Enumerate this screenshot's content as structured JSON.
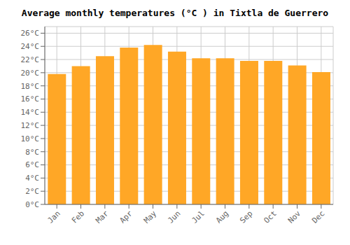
{
  "chart_data": {
    "type": "bar",
    "title": "Average monthly temperatures (°C ) in Tixtla de Guerrero",
    "categories": [
      "Jan",
      "Feb",
      "Mar",
      "Apr",
      "May",
      "Jun",
      "Jul",
      "Aug",
      "Sep",
      "Oct",
      "Nov",
      "Dec"
    ],
    "values": [
      19.8,
      21.0,
      22.5,
      23.8,
      24.2,
      23.2,
      22.2,
      22.2,
      21.8,
      21.8,
      21.1,
      20.1
    ],
    "color": "#FFA726",
    "ylim": [
      0,
      27
    ],
    "yticks": [
      {
        "value": 0,
        "label": "0°C"
      },
      {
        "value": 2,
        "label": "2°C"
      },
      {
        "value": 4,
        "label": "4°C"
      },
      {
        "value": 6,
        "label": "6°C"
      },
      {
        "value": 8,
        "label": "8°C"
      },
      {
        "value": 10,
        "label": "10°C"
      },
      {
        "value": 12,
        "label": "12°C"
      },
      {
        "value": 14,
        "label": "14°C"
      },
      {
        "value": 16,
        "label": "16°C"
      },
      {
        "value": 18,
        "label": "18°C"
      },
      {
        "value": 20,
        "label": "20°C"
      },
      {
        "value": 22,
        "label": "22°C"
      },
      {
        "value": 24,
        "label": "24°C"
      },
      {
        "value": 26,
        "label": "26°C"
      }
    ],
    "grid": true
  }
}
